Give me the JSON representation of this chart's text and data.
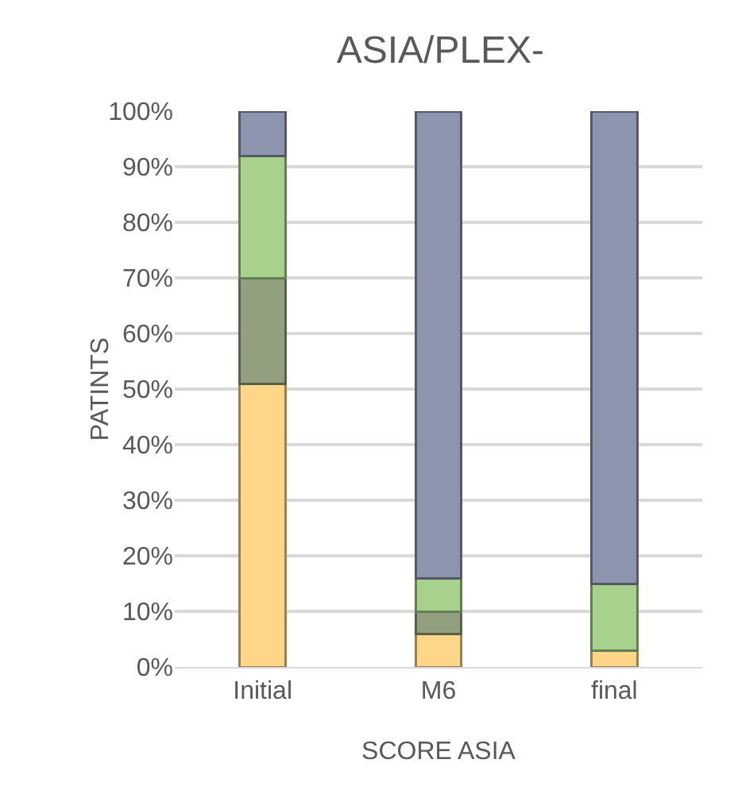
{
  "chart_data": {
    "type": "bar",
    "title": "ASIA/PLEX-",
    "xlabel": "SCORE ASIA",
    "ylabel": "PATINTS",
    "categories": [
      "Initial",
      "M6",
      "final"
    ],
    "stacked": true,
    "series": [
      {
        "color": "#fdd68a",
        "values": [
          51,
          6,
          3
        ]
      },
      {
        "color": "#93a07f",
        "values": [
          19,
          4,
          0
        ]
      },
      {
        "color": "#a9d18e",
        "values": [
          22,
          6,
          12
        ]
      },
      {
        "color": "#8c94ae",
        "values": [
          8,
          84,
          85
        ]
      }
    ],
    "ylim": [
      0,
      100
    ],
    "yticks": [
      {
        "value": 0,
        "label": "0%"
      },
      {
        "value": 10,
        "label": "10%"
      },
      {
        "value": 20,
        "label": "20%"
      },
      {
        "value": 30,
        "label": "30%"
      },
      {
        "value": 40,
        "label": "40%"
      },
      {
        "value": 50,
        "label": "50%"
      },
      {
        "value": 60,
        "label": "60%"
      },
      {
        "value": 70,
        "label": "70%"
      },
      {
        "value": 80,
        "label": "80%"
      },
      {
        "value": 90,
        "label": "90%"
      },
      {
        "value": 100,
        "label": "100%"
      }
    ],
    "grid": "y"
  }
}
